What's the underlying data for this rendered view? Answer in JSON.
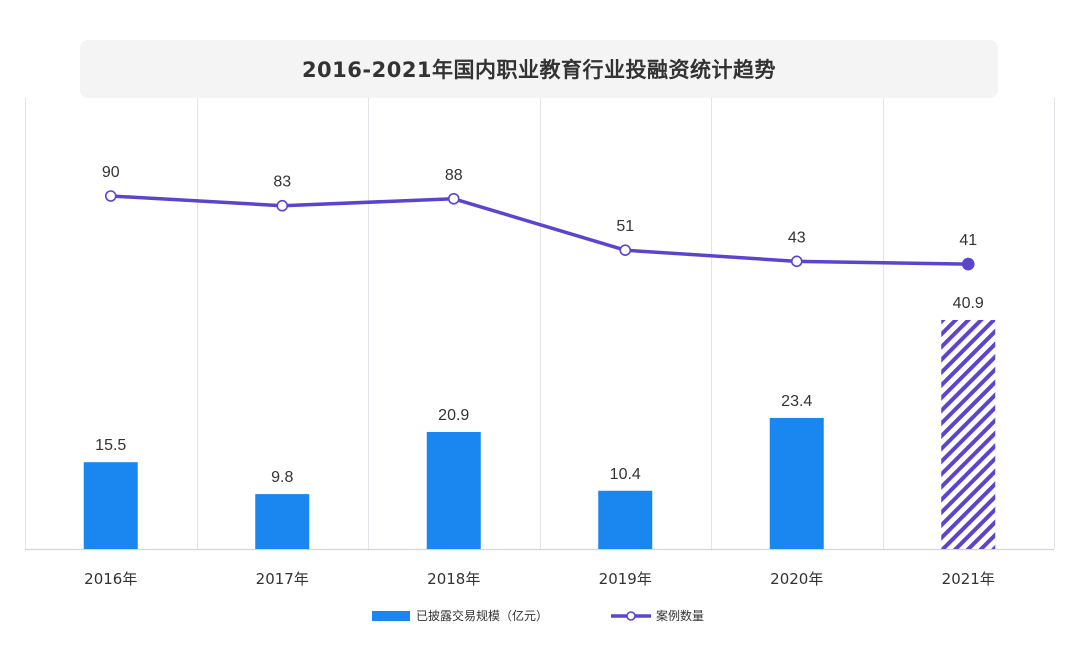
{
  "chart_data": {
    "type": "bar",
    "title": "2016-2021年国内职业教育行业投融资统计趋势",
    "categories": [
      "2016年",
      "2017年",
      "2018年",
      "2019年",
      "2020年",
      "2021年"
    ],
    "series": [
      {
        "name": "已披露交易规模（亿元）",
        "type": "bar",
        "values": [
          15.5,
          9.8,
          20.9,
          10.4,
          23.4,
          40.9
        ],
        "color": "#1a86f0",
        "last_bar_pattern": "diagonal-hatch",
        "last_bar_color": "#5a45cf"
      },
      {
        "name": "案例数量",
        "type": "line",
        "values": [
          90,
          83,
          88,
          51,
          43,
          41
        ],
        "color": "#5a45cf"
      }
    ],
    "legend_position": "bottom-center",
    "grid": "vertical-lines"
  }
}
